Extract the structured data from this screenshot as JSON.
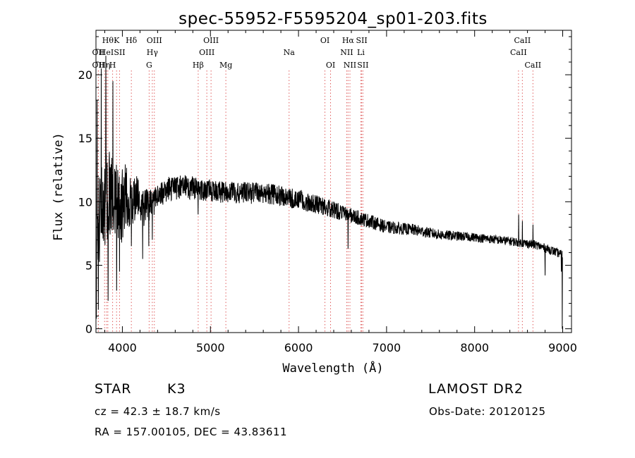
{
  "chart_data": {
    "type": "line",
    "title": "spec-55952-F5595204_sp01-203.fits",
    "xlabel": "Wavelength (Å)",
    "ylabel": "Flux (relative)",
    "xlim": [
      3700,
      9100
    ],
    "ylim": [
      -0.3,
      23.5
    ],
    "x_ticks": [
      4000,
      5000,
      6000,
      7000,
      8000,
      9000
    ],
    "x_tick_labels": [
      "4000",
      "5000",
      "6000",
      "7000",
      "8000",
      "9000"
    ],
    "y_ticks": [
      0,
      5,
      10,
      15,
      20
    ],
    "y_tick_labels": [
      "0",
      "5",
      "10",
      "15",
      "20"
    ],
    "series": [
      {
        "name": "flux",
        "continuum": [
          [
            3700,
            3.0
          ],
          [
            3720,
            8.0
          ],
          [
            3780,
            10.0
          ],
          [
            3850,
            10.5
          ],
          [
            3950,
            9.5
          ],
          [
            4050,
            10.2
          ],
          [
            4150,
            10.5
          ],
          [
            4250,
            9.5
          ],
          [
            4350,
            10.0
          ],
          [
            4500,
            11.0
          ],
          [
            4700,
            11.2
          ],
          [
            4900,
            11.0
          ],
          [
            5100,
            10.8
          ],
          [
            5400,
            10.7
          ],
          [
            5700,
            10.6
          ],
          [
            6000,
            10.2
          ],
          [
            6300,
            9.6
          ],
          [
            6600,
            8.9
          ],
          [
            6800,
            8.5
          ],
          [
            7000,
            8.0
          ],
          [
            7300,
            7.8
          ],
          [
            7600,
            7.4
          ],
          [
            8000,
            7.2
          ],
          [
            8400,
            6.9
          ],
          [
            8700,
            6.6
          ],
          [
            8900,
            6.1
          ],
          [
            9000,
            5.8
          ]
        ],
        "noise_amplitude": [
          [
            3700,
            4.0
          ],
          [
            3950,
            3.5
          ],
          [
            4200,
            1.6
          ],
          [
            4400,
            1.0
          ],
          [
            5000,
            0.9
          ],
          [
            6000,
            0.8
          ],
          [
            6600,
            0.6
          ],
          [
            7000,
            0.5
          ],
          [
            8000,
            0.35
          ],
          [
            9000,
            0.35
          ]
        ],
        "features": [
          {
            "x": 3705,
            "y": 0.8
          },
          {
            "x": 3712,
            "y": 18.0
          },
          {
            "x": 3728,
            "y": 1.5
          },
          {
            "x": 3760,
            "y": 20.5
          },
          {
            "x": 3812,
            "y": 21.5
          },
          {
            "x": 3838,
            "y": 2.2
          },
          {
            "x": 3893,
            "y": 19.5
          },
          {
            "x": 3935,
            "y": 3.0
          },
          {
            "x": 3968,
            "y": 4.5
          },
          {
            "x": 4102,
            "y": 6.5
          },
          {
            "x": 4230,
            "y": 5.5
          },
          {
            "x": 4300,
            "y": 6.5
          },
          {
            "x": 4340,
            "y": 7.0
          },
          {
            "x": 4860,
            "y": 9.0
          },
          {
            "x": 6563,
            "y": 6.3
          },
          {
            "x": 8500,
            "y": 9.0
          },
          {
            "x": 8542,
            "y": 8.5
          },
          {
            "x": 8662,
            "y": 8.2
          },
          {
            "x": 8800,
            "y": 4.2
          },
          {
            "x": 8985,
            "y": 4.5
          },
          {
            "x": 8995,
            "y": 0.0
          }
        ],
        "x_range": [
          3700,
          9000
        ]
      }
    ],
    "line_markers": [
      {
        "wavelength": 3727,
        "label": "OII",
        "row": 2
      },
      {
        "wavelength": 3727,
        "label": "OII",
        "row": 3
      },
      {
        "wavelength": 3798,
        "label": "Hη",
        "row": 3
      },
      {
        "wavelength": 3820,
        "label": "HeI",
        "row": 2
      },
      {
        "wavelength": 3835,
        "label": "Hθ",
        "row": 1
      },
      {
        "wavelength": 3889,
        "label": "H",
        "row": 3
      },
      {
        "wavelength": 3934,
        "label": "K",
        "row": 1
      },
      {
        "wavelength": 3968,
        "label": "SII",
        "row": 2
      },
      {
        "wavelength": 4102,
        "label": "Hδ",
        "row": 1
      },
      {
        "wavelength": 4304,
        "label": "G",
        "row": 3
      },
      {
        "wavelength": 4340,
        "label": "Hγ",
        "row": 2
      },
      {
        "wavelength": 4363,
        "label": "OIII",
        "row": 1
      },
      {
        "wavelength": 4861,
        "label": "Hβ",
        "row": 3
      },
      {
        "wavelength": 4959,
        "label": "OIII",
        "row": 2
      },
      {
        "wavelength": 5007,
        "label": "OIII",
        "row": 1
      },
      {
        "wavelength": 5175,
        "label": "Mg",
        "row": 3
      },
      {
        "wavelength": 5893,
        "label": "Na",
        "row": 2
      },
      {
        "wavelength": 6300,
        "label": "OI",
        "row": 1
      },
      {
        "wavelength": 6364,
        "label": "OI",
        "row": 3
      },
      {
        "wavelength": 6548,
        "label": "NII",
        "row": 2
      },
      {
        "wavelength": 6563,
        "label": "Hα",
        "row": 1
      },
      {
        "wavelength": 6584,
        "label": "NII",
        "row": 3
      },
      {
        "wavelength": 6708,
        "label": "Li",
        "row": 2
      },
      {
        "wavelength": 6717,
        "label": "SII",
        "row": 1
      },
      {
        "wavelength": 6731,
        "label": "SII",
        "row": 3
      },
      {
        "wavelength": 8498,
        "label": "CaII",
        "row": 2
      },
      {
        "wavelength": 8542,
        "label": "CaII",
        "row": 1
      },
      {
        "wavelength": 8662,
        "label": "CaII",
        "row": 3
      }
    ]
  },
  "info": {
    "object_class": "STAR",
    "subclass": "K3",
    "survey": "LAMOST DR2",
    "redshift_line": "cz = 42.3 ± 18.7 km/s",
    "obs_date_line": "Obs-Date: 20120125",
    "coords_line": "RA = 157.00105, DEC =  43.83611"
  },
  "colors": {
    "spectrum": "#000000",
    "marker_lines": "#e06060",
    "axes": "#000000",
    "background": "#ffffff"
  }
}
